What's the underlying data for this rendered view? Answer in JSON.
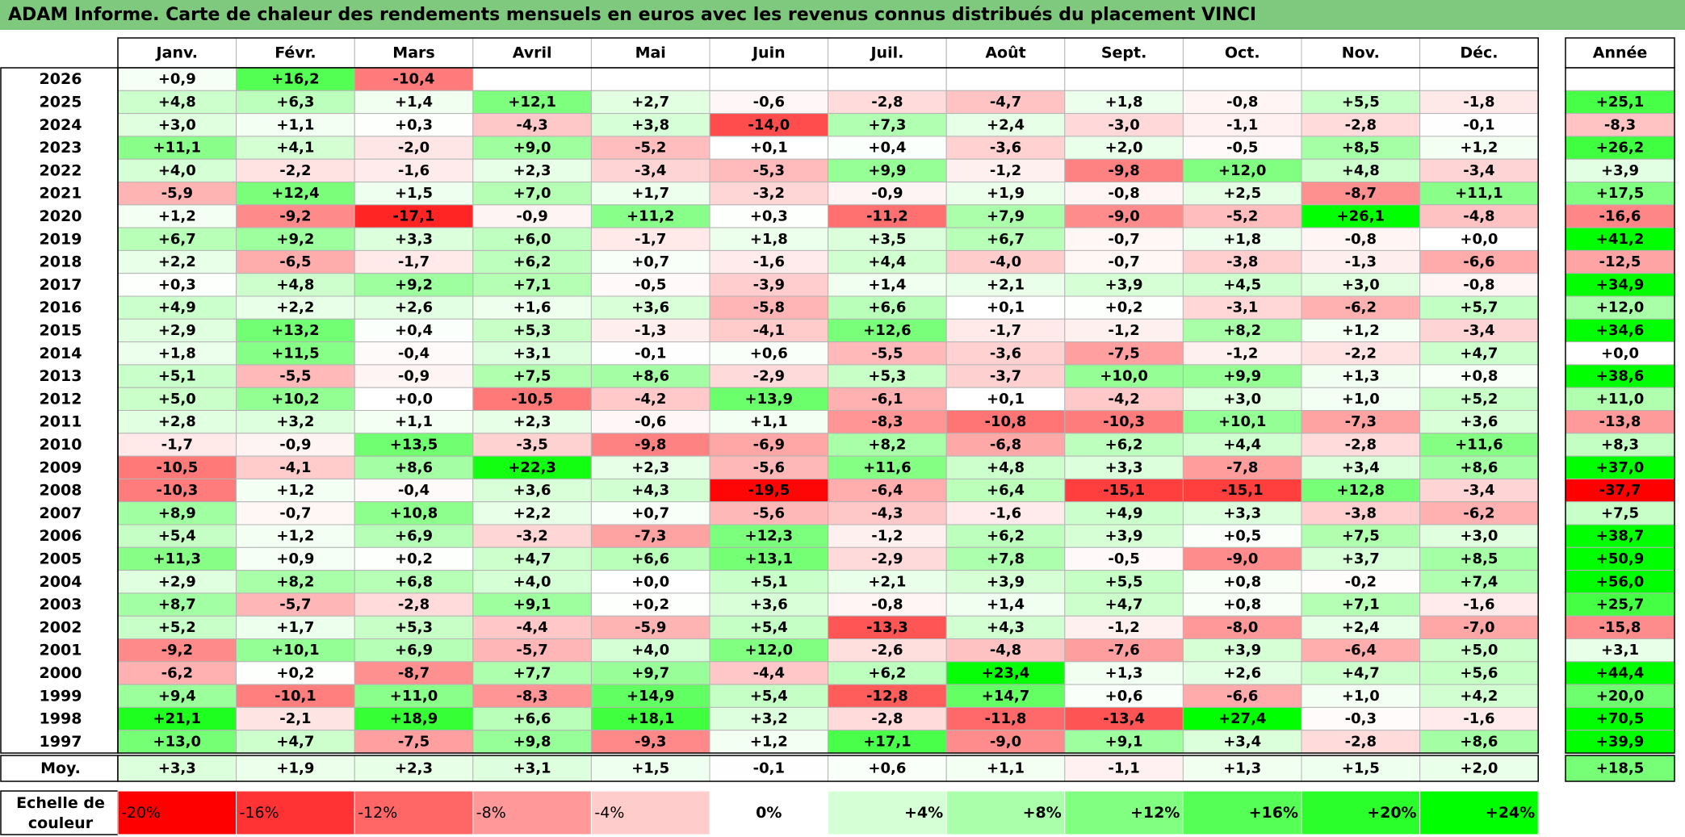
{
  "title": "ADAM Informe. Carte de chaleur des rendements mensuels en euros avec les revenus connus distribués du placement VINCI",
  "chart_data": {
    "type": "heatmap",
    "title": "ADAM Informe. Carte de chaleur des rendements mensuels en euros avec les revenus connus distribués du placement VINCI",
    "months": [
      "Janv.",
      "Févr.",
      "Mars",
      "Avril",
      "Mai",
      "Juin",
      "Juil.",
      "Août",
      "Sept.",
      "Oct.",
      "Nov.",
      "Déc."
    ],
    "year_header": "Année",
    "rows": [
      {
        "year": "2026",
        "months": [
          "+0,9",
          "+16,2",
          "-10,4",
          "",
          "",
          "",
          "",
          "",
          "",
          "",
          "",
          ""
        ],
        "annual": ""
      },
      {
        "year": "2025",
        "months": [
          "+4,8",
          "+6,3",
          "+1,4",
          "+12,1",
          "+2,7",
          "-0,6",
          "-2,8",
          "-4,7",
          "+1,8",
          "-0,8",
          "+5,5",
          "-1,8"
        ],
        "annual": "+25,1"
      },
      {
        "year": "2024",
        "months": [
          "+3,0",
          "+1,1",
          "+0,3",
          "-4,3",
          "+3,8",
          "-14,0",
          "+7,3",
          "+2,4",
          "-3,0",
          "-1,1",
          "-2,8",
          "-0,1"
        ],
        "annual": "-8,3"
      },
      {
        "year": "2023",
        "months": [
          "+11,1",
          "+4,1",
          "-2,0",
          "+9,0",
          "-5,2",
          "+0,1",
          "+0,4",
          "-3,6",
          "+2,0",
          "-0,5",
          "+8,5",
          "+1,2"
        ],
        "annual": "+26,2"
      },
      {
        "year": "2022",
        "months": [
          "+4,0",
          "-2,2",
          "-1,6",
          "+2,3",
          "-3,4",
          "-5,3",
          "+9,9",
          "-1,2",
          "-9,8",
          "+12,0",
          "+4,8",
          "-3,4"
        ],
        "annual": "+3,9"
      },
      {
        "year": "2021",
        "months": [
          "-5,9",
          "+12,4",
          "+1,5",
          "+7,0",
          "+1,7",
          "-3,2",
          "-0,9",
          "+1,9",
          "-0,8",
          "+2,5",
          "-8,7",
          "+11,1"
        ],
        "annual": "+17,5"
      },
      {
        "year": "2020",
        "months": [
          "+1,2",
          "-9,2",
          "-17,1",
          "-0,9",
          "+11,2",
          "+0,3",
          "-11,2",
          "+7,9",
          "-9,0",
          "-5,2",
          "+26,1",
          "-4,8"
        ],
        "annual": "-16,6"
      },
      {
        "year": "2019",
        "months": [
          "+6,7",
          "+9,2",
          "+3,3",
          "+6,0",
          "-1,7",
          "+1,8",
          "+3,5",
          "+6,7",
          "-0,7",
          "+1,8",
          "-0,8",
          "+0,0"
        ],
        "annual": "+41,2"
      },
      {
        "year": "2018",
        "months": [
          "+2,2",
          "-6,5",
          "-1,7",
          "+6,2",
          "+0,7",
          "-1,6",
          "+4,4",
          "-4,0",
          "-0,7",
          "-3,8",
          "-1,3",
          "-6,6"
        ],
        "annual": "-12,5"
      },
      {
        "year": "2017",
        "months": [
          "+0,3",
          "+4,8",
          "+9,2",
          "+7,1",
          "-0,5",
          "-3,9",
          "+1,4",
          "+2,1",
          "+3,9",
          "+4,5",
          "+3,0",
          "-0,8"
        ],
        "annual": "+34,9"
      },
      {
        "year": "2016",
        "months": [
          "+4,9",
          "+2,2",
          "+2,6",
          "+1,6",
          "+3,6",
          "-5,8",
          "+6,6",
          "+0,1",
          "+0,2",
          "-3,1",
          "-6,2",
          "+5,7"
        ],
        "annual": "+12,0"
      },
      {
        "year": "2015",
        "months": [
          "+2,9",
          "+13,2",
          "+0,4",
          "+5,3",
          "-1,3",
          "-4,1",
          "+12,6",
          "-1,7",
          "-1,2",
          "+8,2",
          "+1,2",
          "-3,4"
        ],
        "annual": "+34,6"
      },
      {
        "year": "2014",
        "months": [
          "+1,8",
          "+11,5",
          "-0,4",
          "+3,1",
          "-0,1",
          "+0,6",
          "-5,5",
          "-3,6",
          "-7,5",
          "-1,2",
          "-2,2",
          "+4,7"
        ],
        "annual": "+0,0"
      },
      {
        "year": "2013",
        "months": [
          "+5,1",
          "-5,5",
          "-0,9",
          "+7,5",
          "+8,6",
          "-2,9",
          "+5,3",
          "-3,7",
          "+10,0",
          "+9,9",
          "+1,3",
          "+0,8"
        ],
        "annual": "+38,6"
      },
      {
        "year": "2012",
        "months": [
          "+5,0",
          "+10,2",
          "+0,0",
          "-10,5",
          "-4,2",
          "+13,9",
          "-6,1",
          "+0,1",
          "-4,2",
          "+3,0",
          "+1,0",
          "+5,2"
        ],
        "annual": "+11,0"
      },
      {
        "year": "2011",
        "months": [
          "+2,8",
          "+3,2",
          "+1,1",
          "+2,3",
          "-0,6",
          "+1,1",
          "-8,3",
          "-10,8",
          "-10,3",
          "+10,1",
          "-7,3",
          "+3,6"
        ],
        "annual": "-13,8"
      },
      {
        "year": "2010",
        "months": [
          "-1,7",
          "-0,9",
          "+13,5",
          "-3,5",
          "-9,8",
          "-6,9",
          "+8,2",
          "-6,8",
          "+6,2",
          "+4,4",
          "-2,8",
          "+11,6"
        ],
        "annual": "+8,3"
      },
      {
        "year": "2009",
        "months": [
          "-10,5",
          "-4,1",
          "+8,6",
          "+22,3",
          "+2,3",
          "-5,6",
          "+11,6",
          "+4,8",
          "+3,3",
          "-7,8",
          "+3,4",
          "+8,6"
        ],
        "annual": "+37,0"
      },
      {
        "year": "2008",
        "months": [
          "-10,3",
          "+1,2",
          "-0,4",
          "+3,6",
          "+4,3",
          "-19,5",
          "-6,4",
          "+6,4",
          "-15,1",
          "-15,1",
          "+12,8",
          "-3,4"
        ],
        "annual": "-37,7"
      },
      {
        "year": "2007",
        "months": [
          "+8,9",
          "-0,7",
          "+10,8",
          "+2,2",
          "+0,7",
          "-5,6",
          "-4,3",
          "-1,6",
          "+4,9",
          "+3,3",
          "-3,8",
          "-6,2"
        ],
        "annual": "+7,5"
      },
      {
        "year": "2006",
        "months": [
          "+5,4",
          "+1,2",
          "+6,9",
          "-3,2",
          "-7,3",
          "+12,3",
          "-1,2",
          "+6,2",
          "+3,9",
          "+0,5",
          "+7,5",
          "+3,0"
        ],
        "annual": "+38,7"
      },
      {
        "year": "2005",
        "months": [
          "+11,3",
          "+0,9",
          "+0,2",
          "+4,7",
          "+6,6",
          "+13,1",
          "-2,9",
          "+7,8",
          "-0,5",
          "-9,0",
          "+3,7",
          "+8,5"
        ],
        "annual": "+50,9"
      },
      {
        "year": "2004",
        "months": [
          "+2,9",
          "+8,2",
          "+6,8",
          "+4,0",
          "+0,0",
          "+5,1",
          "+2,1",
          "+3,9",
          "+5,5",
          "+0,8",
          "-0,2",
          "+7,4"
        ],
        "annual": "+56,0"
      },
      {
        "year": "2003",
        "months": [
          "+8,7",
          "-5,7",
          "-2,8",
          "+9,1",
          "+0,2",
          "+3,6",
          "-0,8",
          "+1,4",
          "+4,7",
          "+0,8",
          "+7,1",
          "-1,6"
        ],
        "annual": "+25,7"
      },
      {
        "year": "2002",
        "months": [
          "+5,2",
          "+1,7",
          "+5,3",
          "-4,4",
          "-5,9",
          "+5,4",
          "-13,3",
          "+4,3",
          "-1,2",
          "-8,0",
          "+2,4",
          "-7,0"
        ],
        "annual": "-15,8"
      },
      {
        "year": "2001",
        "months": [
          "-9,2",
          "+10,1",
          "+6,9",
          "-5,7",
          "+4,0",
          "+12,0",
          "-2,6",
          "-4,8",
          "-7,6",
          "+3,9",
          "-6,4",
          "+5,0"
        ],
        "annual": "+3,1"
      },
      {
        "year": "2000",
        "months": [
          "-6,2",
          "+0,2",
          "-8,7",
          "+7,7",
          "+9,7",
          "-4,4",
          "+6,2",
          "+23,4",
          "+1,3",
          "+2,6",
          "+4,7",
          "+5,6"
        ],
        "annual": "+44,4"
      },
      {
        "year": "1999",
        "months": [
          "+9,4",
          "-10,1",
          "+11,0",
          "-8,3",
          "+14,9",
          "+5,4",
          "-12,8",
          "+14,7",
          "+0,6",
          "-6,6",
          "+1,0",
          "+4,2"
        ],
        "annual": "+20,0"
      },
      {
        "year": "1998",
        "months": [
          "+21,1",
          "-2,1",
          "+18,9",
          "+6,6",
          "+18,1",
          "+3,2",
          "-2,8",
          "-11,8",
          "-13,4",
          "+27,4",
          "-0,3",
          "-1,6"
        ],
        "annual": "+70,5"
      },
      {
        "year": "1997",
        "months": [
          "+13,0",
          "+4,7",
          "-7,5",
          "+9,8",
          "-9,3",
          "+1,2",
          "+17,1",
          "-9,0",
          "+9,1",
          "+3,4",
          "-2,8",
          "+8,6"
        ],
        "annual": "+39,9"
      }
    ],
    "average": {
      "label": "Moy.",
      "months": [
        "+3,3",
        "+1,9",
        "+2,3",
        "+3,1",
        "+1,5",
        "-0,1",
        "+0,6",
        "+1,1",
        "-1,1",
        "+1,3",
        "+1,5",
        "+2,0"
      ],
      "annual": "+18,5"
    },
    "scale": {
      "label_line1": "Echelle de",
      "label_line2": "couleur",
      "steps": [
        "-20%",
        "-16%",
        "-12%",
        "-8%",
        "-4%",
        "0%",
        "+4%",
        "+8%",
        "+12%",
        "+16%",
        "+20%",
        "+24%"
      ],
      "values": [
        -20,
        -16,
        -12,
        -8,
        -4,
        0,
        4,
        8,
        12,
        16,
        20,
        24
      ]
    },
    "colors": {
      "title_bg": "#7fc97f",
      "negative_max": "#ff0000",
      "neutral": "#ffffff",
      "positive_max": "#00ff00",
      "grid": "#b4b4b4",
      "border": "#000000"
    }
  }
}
